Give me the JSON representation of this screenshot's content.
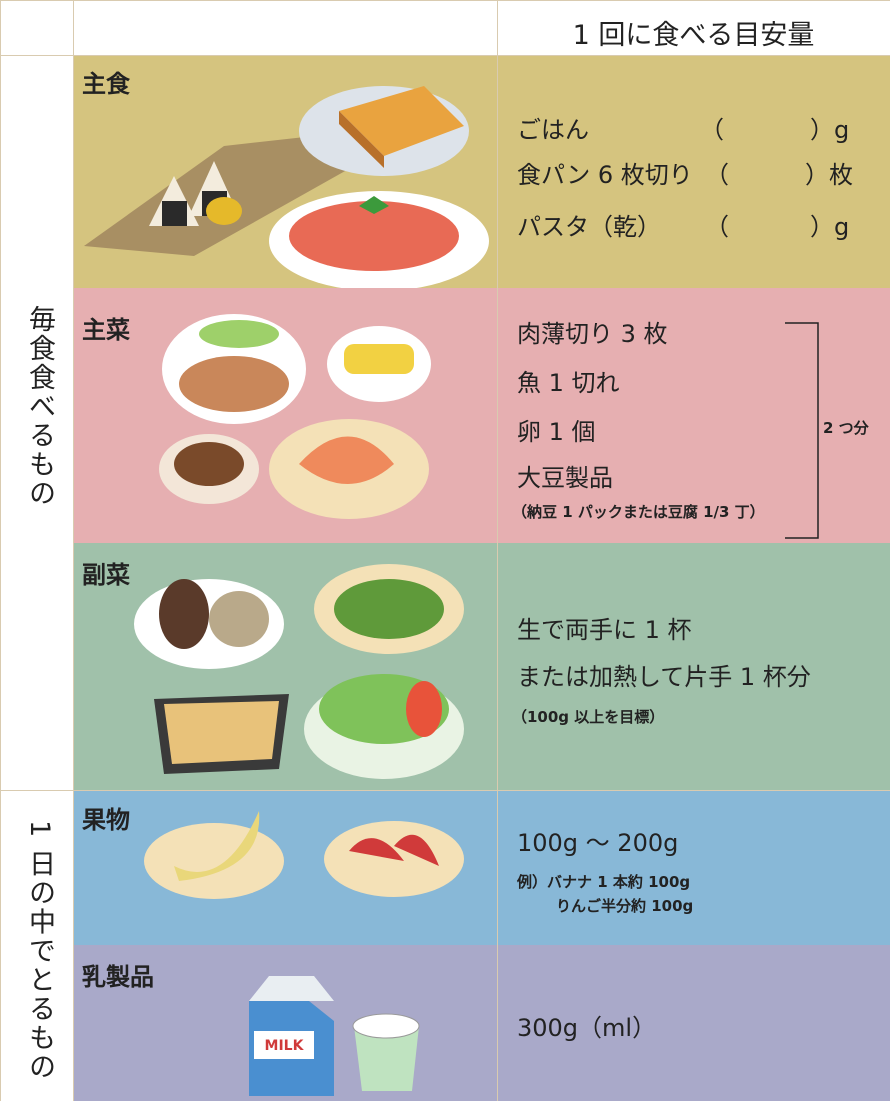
{
  "header": {
    "amount_title": "1 回に食べる目安量"
  },
  "groups": [
    {
      "label": "毎食食べるもの",
      "rows": [
        {
          "name": "主食",
          "lines": [
            [
              "ごはん",
              "（",
              "）g"
            ],
            [
              "食パン 6 枚切り",
              "（",
              "）枚"
            ],
            [
              "パスタ（乾）",
              "（",
              "）g"
            ]
          ]
        },
        {
          "name": "主菜",
          "lines": [
            "肉薄切り 3 枚",
            "魚 1 切れ",
            "卵 1 個",
            "大豆製品"
          ],
          "note": "（納豆 1 パックまたは豆腐 1/3 丁）",
          "bracket_label": "2 つ分"
        },
        {
          "name": "副菜",
          "lines": [
            "生で両手に 1 杯",
            "または加熱して片手 1 杯分"
          ],
          "note": "（100g 以上を目標）"
        }
      ]
    },
    {
      "label": "1 日の中でとるもの",
      "rows": [
        {
          "name": "果物",
          "lines": [
            "100g 〜 200g"
          ],
          "notes": [
            "例）バナナ 1 本約 100g",
            "りんご半分約 100g"
          ]
        },
        {
          "name": "乳製品",
          "lines": [
            "300g（ml）"
          ]
        }
      ]
    }
  ]
}
